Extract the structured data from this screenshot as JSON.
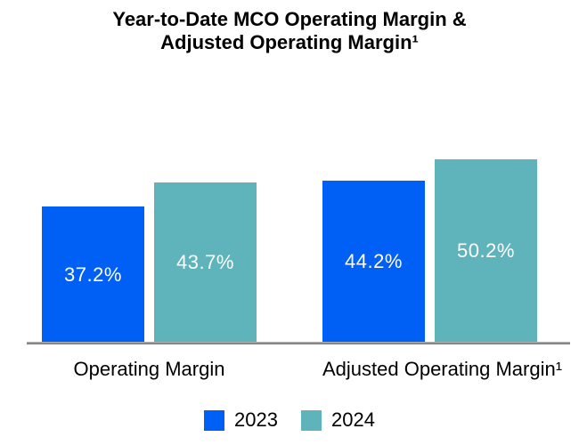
{
  "title": {
    "lines": [
      "Year-to-Date MCO Operating Margin &",
      "Adjusted Operating Margin¹"
    ]
  },
  "chart_data": {
    "type": "bar",
    "title": "Year-to-Date MCO Operating Margin & Adjusted Operating Margin¹",
    "categories": [
      "Operating Margin",
      "Adjusted Operating Margin¹"
    ],
    "series": [
      {
        "name": "2023",
        "color": "#005FF5",
        "values": [
          37.2,
          44.2
        ]
      },
      {
        "name": "2024",
        "color": "#5FB4BB",
        "values": [
          43.7,
          50.2
        ]
      }
    ],
    "value_labels": [
      "37.2%",
      "43.7%",
      "44.2%",
      "50.2%"
    ],
    "unit": "%",
    "ylim": [
      0,
      55
    ],
    "grid": false,
    "axis_line_color": "#8a8a8a",
    "legend_position": "bottom"
  }
}
